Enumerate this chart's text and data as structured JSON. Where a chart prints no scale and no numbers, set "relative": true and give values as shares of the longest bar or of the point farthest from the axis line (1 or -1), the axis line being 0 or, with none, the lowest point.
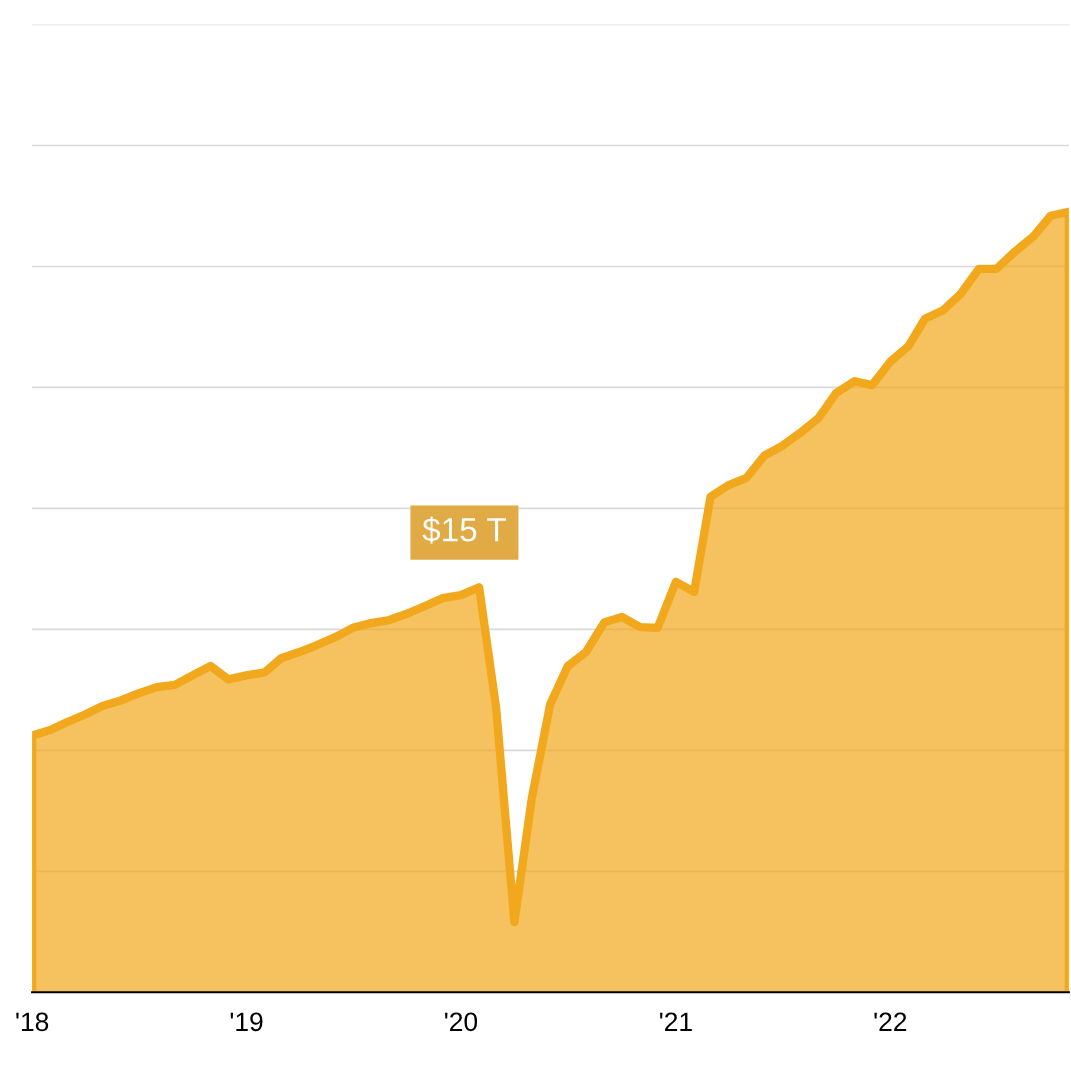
{
  "chart_data": {
    "type": "area",
    "relative": true,
    "grid": "y",
    "x": [
      "2018-01",
      "2018-02",
      "2018-03",
      "2018-04",
      "2018-05",
      "2018-06",
      "2018-07",
      "2018-08",
      "2018-09",
      "2018-10",
      "2018-11",
      "2018-12",
      "2019-01",
      "2019-02",
      "2019-03",
      "2019-04",
      "2019-05",
      "2019-06",
      "2019-07",
      "2019-08",
      "2019-09",
      "2019-10",
      "2019-11",
      "2019-12",
      "2020-01",
      "2020-02",
      "2020-03",
      "2020-04",
      "2020-05",
      "2020-06",
      "2020-07",
      "2020-08",
      "2020-09",
      "2020-10",
      "2020-11",
      "2020-12",
      "2021-01",
      "2021-02",
      "2021-03",
      "2021-04",
      "2021-05",
      "2021-06",
      "2021-07",
      "2021-08",
      "2021-09",
      "2021-10",
      "2021-11",
      "2021-12",
      "2022-01",
      "2022-02",
      "2022-03",
      "2022-04",
      "2022-05",
      "2022-06",
      "2022-07",
      "2022-08",
      "2022-09",
      "2022-10",
      "2022-11"
    ],
    "series": [
      {
        "color": "#f2a81d",
        "values": [
          0.329,
          0.336,
          0.346,
          0.356,
          0.367,
          0.374,
          0.383,
          0.391,
          0.394,
          0.406,
          0.418,
          0.401,
          0.406,
          0.41,
          0.428,
          0.436,
          0.445,
          0.455,
          0.467,
          0.473,
          0.477,
          0.485,
          0.495,
          0.505,
          0.509,
          0.519,
          0.364,
          0.09,
          0.25,
          0.369,
          0.418,
          0.436,
          0.474,
          0.481,
          0.468,
          0.467,
          0.526,
          0.513,
          0.635,
          0.65,
          0.659,
          0.688,
          0.7,
          0.717,
          0.736,
          0.768,
          0.783,
          0.778,
          0.808,
          0.828,
          0.863,
          0.874,
          0.895,
          0.927,
          0.927,
          0.949,
          0.968,
          0.995,
          1
        ]
      }
    ],
    "xlim": [
      "2018-01",
      "2022-11"
    ],
    "xticks": [
      {
        "value": "2018-01",
        "label": "'18"
      },
      {
        "value": "2019-01",
        "label": "'19"
      },
      {
        "value": "2020-01",
        "label": "'20"
      },
      {
        "value": "2021-01",
        "label": "'21"
      },
      {
        "value": "2022-01",
        "label": "'22"
      }
    ],
    "annotations": [
      "$15 T"
    ]
  }
}
